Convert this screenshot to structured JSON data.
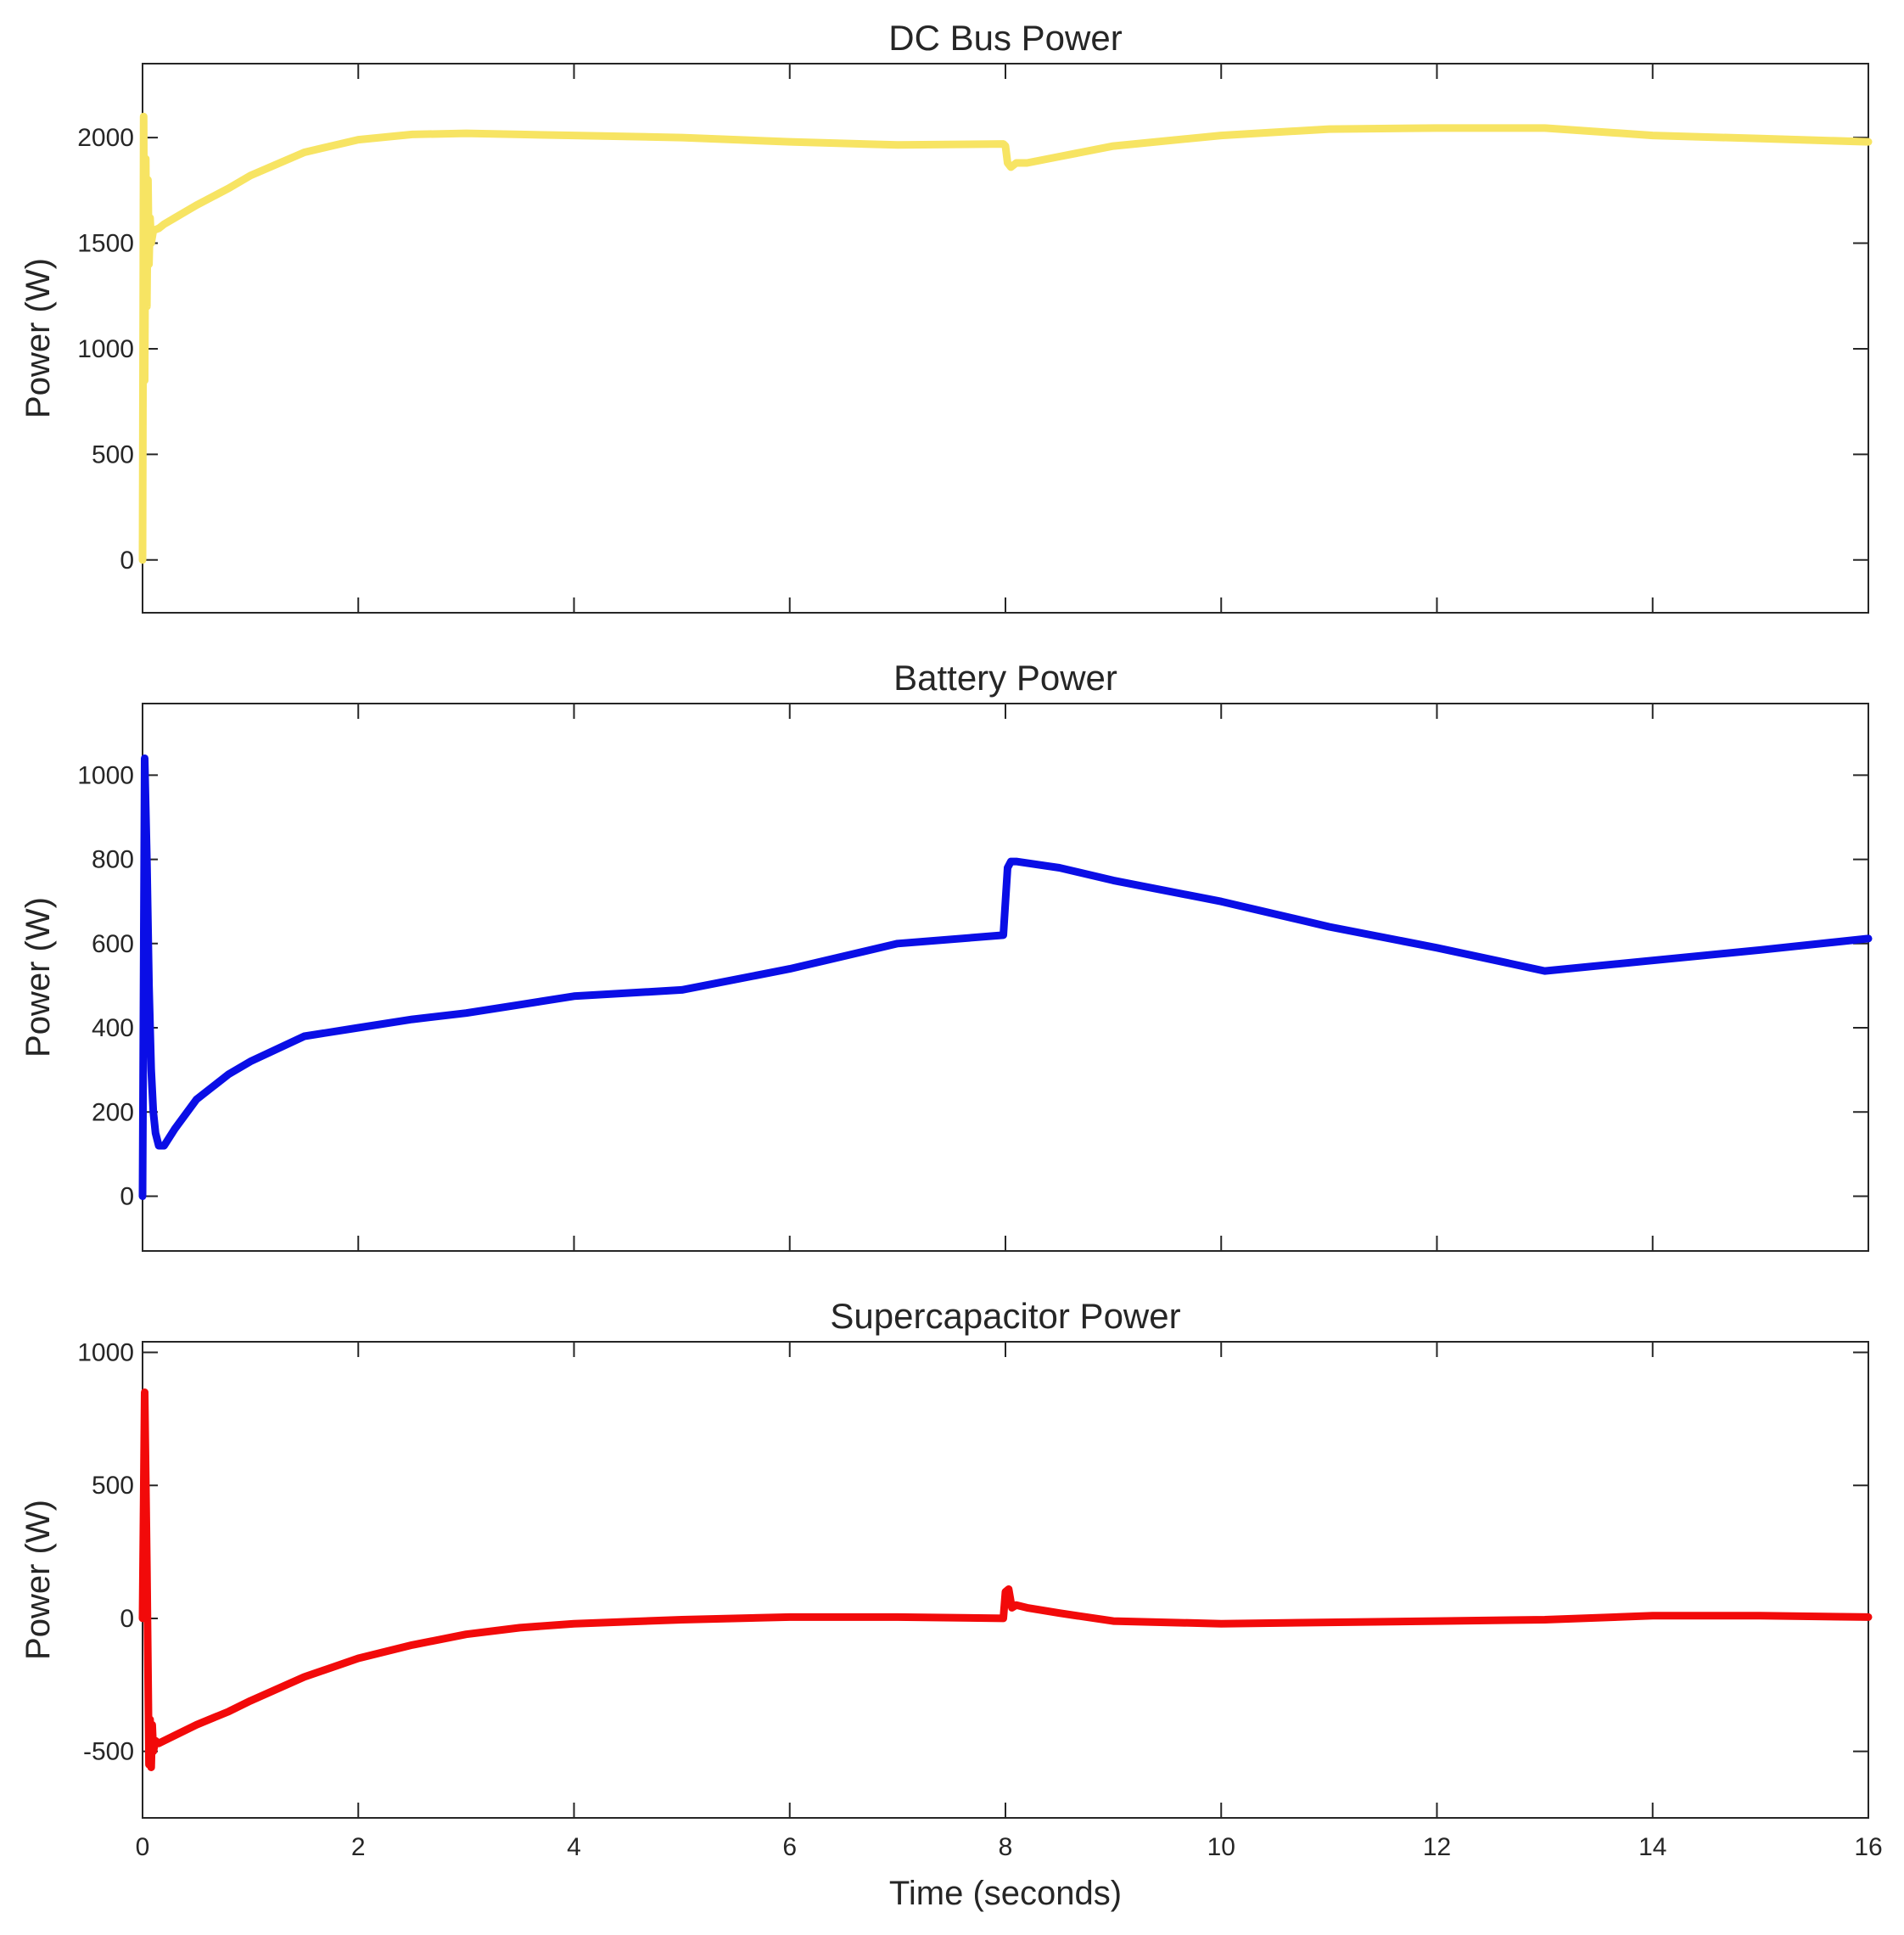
{
  "chart_data": [
    {
      "type": "line",
      "title": "DC Bus Power",
      "ylabel": "Power (W)",
      "xlabel": "",
      "xlim": [
        0,
        16
      ],
      "ylim": [
        -250,
        2350
      ],
      "yticks": [
        0,
        500,
        1000,
        1500,
        2000
      ],
      "xticks": [
        0,
        2,
        4,
        6,
        8,
        10,
        12,
        14,
        16
      ],
      "show_xtick_labels": false,
      "grid": false,
      "series": [
        {
          "color": "#f7e463",
          "x": [
            0,
            0.01,
            0.02,
            0.03,
            0.04,
            0.05,
            0.06,
            0.07,
            0.08,
            0.1,
            0.15,
            0.2,
            0.3,
            0.5,
            0.8,
            1.0,
            1.5,
            2.0,
            2.5,
            3.0,
            3.5,
            4.0,
            5.0,
            6.0,
            7.0,
            7.98,
            8.0,
            8.02,
            8.05,
            8.1,
            8.2,
            8.5,
            9.0,
            10.0,
            11.0,
            12.0,
            13.0,
            14.0,
            15.0,
            16.0
          ],
          "y": [
            0,
            2100,
            850,
            1900,
            1200,
            1800,
            1400,
            1620,
            1500,
            1560,
            1570,
            1590,
            1620,
            1680,
            1760,
            1820,
            1930,
            1990,
            2015,
            2020,
            2015,
            2010,
            2000,
            1980,
            1965,
            1970,
            1960,
            1880,
            1860,
            1880,
            1880,
            1910,
            1960,
            2010,
            2040,
            2045,
            2045,
            2010,
            1995,
            1980
          ]
        }
      ]
    },
    {
      "type": "line",
      "title": "Battery Power",
      "ylabel": "Power (W)",
      "xlabel": "",
      "xlim": [
        0,
        16
      ],
      "ylim": [
        -130,
        1170
      ],
      "yticks": [
        0,
        200,
        400,
        600,
        800,
        1000
      ],
      "xticks": [
        0,
        2,
        4,
        6,
        8,
        10,
        12,
        14,
        16
      ],
      "show_xtick_labels": false,
      "grid": false,
      "series": [
        {
          "color": "#0a0ee6",
          "x": [
            0,
            0.02,
            0.04,
            0.06,
            0.08,
            0.1,
            0.12,
            0.15,
            0.2,
            0.3,
            0.5,
            0.8,
            1.0,
            1.5,
            2.0,
            2.5,
            3.0,
            3.5,
            4.0,
            5.0,
            6.0,
            7.0,
            7.98,
            8.02,
            8.05,
            8.1,
            8.5,
            9.0,
            10.0,
            11.0,
            12.0,
            13.0,
            14.0,
            15.0,
            16.0
          ],
          "y": [
            0,
            1040,
            800,
            500,
            300,
            200,
            150,
            120,
            120,
            160,
            230,
            290,
            320,
            380,
            400,
            420,
            435,
            455,
            475,
            490,
            540,
            600,
            620,
            780,
            795,
            795,
            780,
            750,
            700,
            640,
            590,
            535,
            560,
            585,
            612
          ]
        }
      ]
    },
    {
      "type": "line",
      "title": "Supercapacitor Power",
      "ylabel": "Power (W)",
      "xlabel": "Time (seconds)",
      "xlim": [
        0,
        16
      ],
      "ylim": [
        -750,
        1040
      ],
      "yticks": [
        -500,
        0,
        500,
        1000
      ],
      "xticks": [
        0,
        2,
        4,
        6,
        8,
        10,
        12,
        14,
        16
      ],
      "show_xtick_labels": true,
      "grid": false,
      "series": [
        {
          "color": "#f20a0a",
          "x": [
            0,
            0.02,
            0.04,
            0.06,
            0.07,
            0.08,
            0.09,
            0.1,
            0.12,
            0.15,
            0.2,
            0.3,
            0.5,
            0.8,
            1.0,
            1.5,
            2.0,
            2.5,
            3.0,
            3.5,
            4.0,
            5.0,
            6.0,
            7.0,
            7.98,
            8.0,
            8.03,
            8.06,
            8.1,
            8.2,
            8.5,
            9.0,
            10.0,
            11.0,
            12.0,
            13.0,
            14.0,
            15.0,
            16.0
          ],
          "y": [
            0,
            850,
            200,
            -550,
            -380,
            -560,
            -400,
            -500,
            -460,
            -470,
            -460,
            -440,
            -400,
            -350,
            -310,
            -220,
            -150,
            -100,
            -60,
            -35,
            -20,
            -5,
            5,
            5,
            0,
            100,
            110,
            40,
            50,
            40,
            20,
            -10,
            -20,
            -15,
            -10,
            -5,
            10,
            10,
            5
          ]
        }
      ]
    }
  ]
}
